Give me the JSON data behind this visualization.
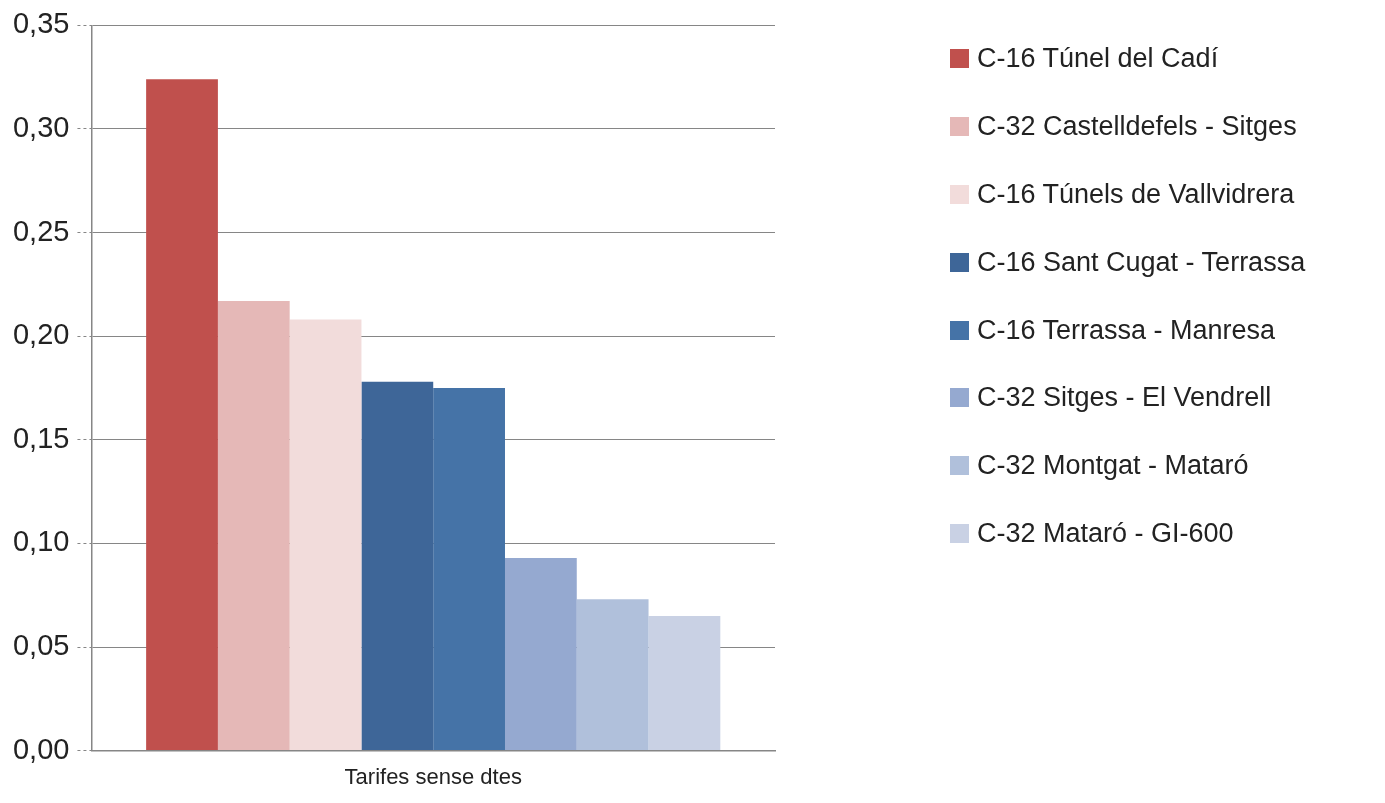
{
  "chart_data": {
    "type": "bar",
    "categories": [
      "Tarifes sense dtes"
    ],
    "series": [
      {
        "name": "C-16 Túnel del Cadí",
        "color": "#c0504d",
        "values": [
          0.324
        ]
      },
      {
        "name": "C-32 Castelldefels - Sitges",
        "color": "#e5b8b7",
        "values": [
          0.217
        ]
      },
      {
        "name": "C-16 Túnels de Vallvidrera",
        "color": "#f2dcdb",
        "values": [
          0.208
        ]
      },
      {
        "name": "C-16 Sant Cugat - Terrassa",
        "color": "#3e6698",
        "values": [
          0.178
        ]
      },
      {
        "name": "C-16 Terrassa - Manresa",
        "color": "#4573a7",
        "values": [
          0.175
        ]
      },
      {
        "name": "C-32 Sitges - El Vendrell",
        "color": "#95a9d0",
        "values": [
          0.093
        ]
      },
      {
        "name": "C-32 Montgat - Mataró",
        "color": "#b0c0db",
        "values": [
          0.073
        ]
      },
      {
        "name": "C-32 Mataró - GI-600",
        "color": "#c9d1e4",
        "values": [
          0.065
        ]
      }
    ],
    "ylim": [
      0,
      0.35
    ],
    "yticks": [
      {
        "value": 0,
        "label": "0,00"
      },
      {
        "value": 0.05,
        "label": "0,05"
      },
      {
        "value": 0.1,
        "label": "0,10"
      },
      {
        "value": 0.15,
        "label": "0,15"
      },
      {
        "value": 0.2,
        "label": "0,20"
      },
      {
        "value": 0.25,
        "label": "0,25"
      },
      {
        "value": 0.3,
        "label": "0,30"
      },
      {
        "value": 0.35,
        "label": "0,35"
      }
    ],
    "grid": "y",
    "legend": "right"
  }
}
